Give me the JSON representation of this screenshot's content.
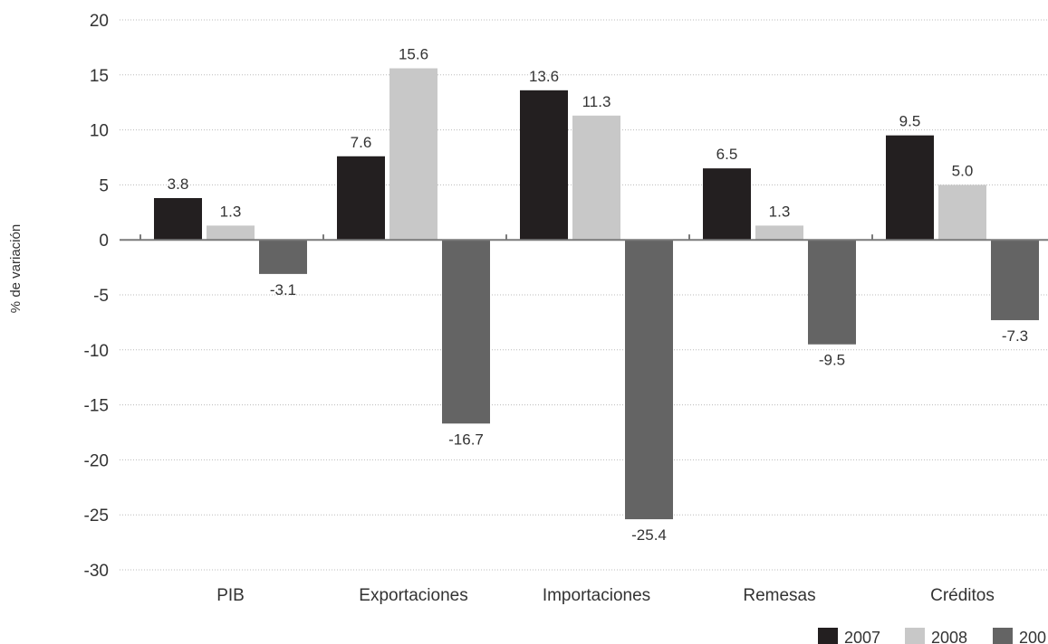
{
  "chart_data": {
    "type": "bar",
    "title": "",
    "xlabel": "",
    "ylabel": "% de variación",
    "ylim": [
      -30,
      20
    ],
    "yticks": [
      20,
      15,
      10,
      5,
      0,
      -5,
      -10,
      -15,
      -20,
      -25,
      -30
    ],
    "grid": true,
    "legend_position": "bottom-right",
    "categories": [
      "PIB",
      "Exportaciones",
      "Importaciones",
      "Remesas",
      "Créditos"
    ],
    "series": [
      {
        "name": "2007",
        "color": "#231f20",
        "values": [
          3.8,
          7.6,
          13.6,
          6.5,
          9.5
        ]
      },
      {
        "name": "2008",
        "color": "#c8c8c8",
        "values": [
          1.3,
          15.6,
          11.3,
          1.3,
          5.0
        ]
      },
      {
        "name": "200",
        "color": "#646464",
        "values": [
          -3.1,
          -16.7,
          -25.4,
          -9.5,
          -7.3
        ]
      }
    ]
  }
}
